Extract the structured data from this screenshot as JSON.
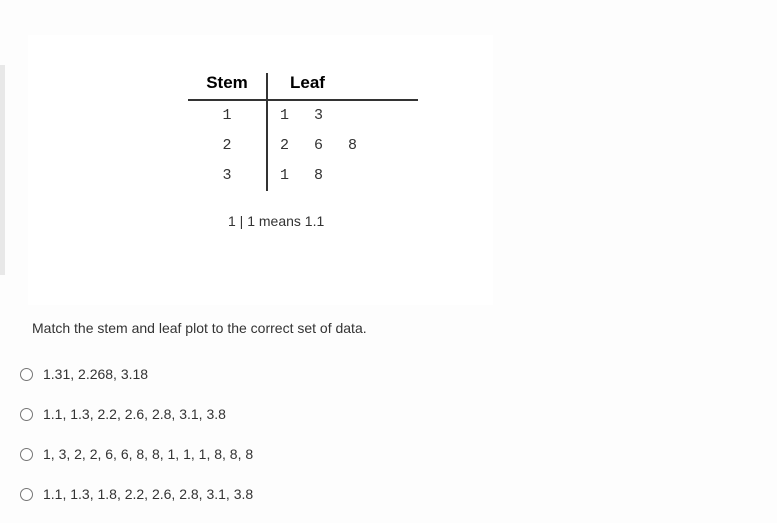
{
  "plot": {
    "header_stem": "Stem",
    "header_leaf": "Leaf",
    "rows": [
      {
        "stem": "1",
        "leaves": "1 3"
      },
      {
        "stem": "2",
        "leaves": "2 6 8"
      },
      {
        "stem": "3",
        "leaves": "1 8"
      }
    ],
    "key": "1 | 1 means 1.1"
  },
  "question": "Match the stem and leaf plot to the correct set of data.",
  "options": [
    "1.31, 2.268, 3.18",
    "1.1, 1.3, 2.2, 2.6, 2.8, 3.1, 3.8",
    "1, 3, 2, 2, 6, 6, 8, 8, 1, 1, 1, 8, 8, 8",
    "1.1, 1.3, 1.8, 2.2, 2.6, 2.8, 3.1, 3.8"
  ],
  "colors": {
    "background": "#fdfdfd",
    "box_background": "#ffffff",
    "text": "#333333",
    "border": "#333333"
  }
}
